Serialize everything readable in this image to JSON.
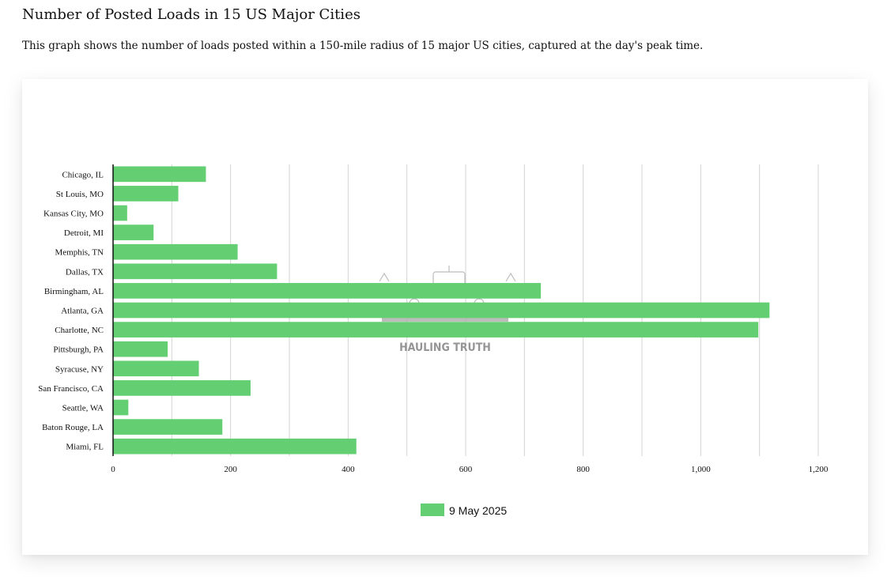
{
  "page": {
    "title": "Number of Posted Loads in 15 US Major Cities",
    "description": "This graph shows the number of loads posted within a 150-mile radius of 15 major US cities, captured at the day's peak time."
  },
  "watermark": {
    "text": "HAULING TRUTH"
  },
  "colors": {
    "bar": "#63cf72",
    "grid": "#d3d3d3",
    "axis": "#111111"
  },
  "chart_data": {
    "type": "bar",
    "orientation": "horizontal",
    "categories": [
      "Chicago, IL",
      "St Louis, MO",
      "Kansas City, MO",
      "Detroit, MI",
      "Memphis, TN",
      "Dallas, TX",
      "Birmingham, AL",
      "Atlanta, GA",
      "Charlotte, NC",
      "Pittsburgh, PA",
      "Syracuse, NY",
      "San Francisco, CA",
      "Seattle, WA",
      "Baton Rouge, LA",
      "Miami, FL"
    ],
    "series": [
      {
        "name": "9 May 2025",
        "values": [
          158,
          111,
          24,
          69,
          212,
          279,
          728,
          1117,
          1098,
          93,
          146,
          234,
          26,
          186,
          414
        ]
      }
    ],
    "xlim": [
      0,
      1200
    ],
    "ticks": [
      0,
      200,
      400,
      600,
      800,
      1000,
      1200
    ],
    "tick_labels": [
      "0",
      "200",
      "400",
      "600",
      "800",
      "1,000",
      "1,200"
    ],
    "grid": true,
    "legend_position": "bottom"
  }
}
